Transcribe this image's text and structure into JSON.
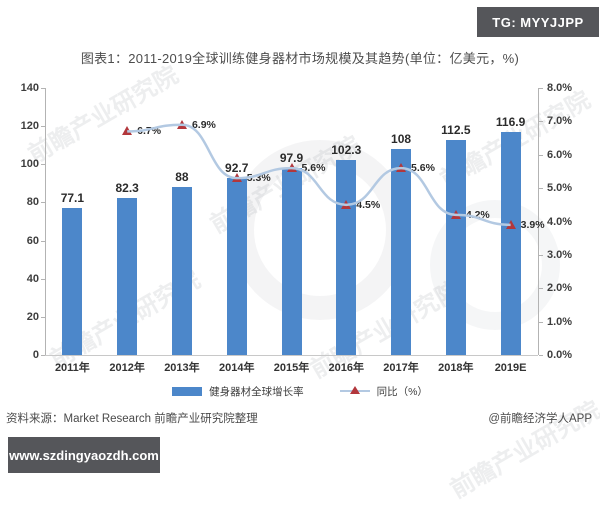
{
  "badges": {
    "tg": "TG: MYYJJPP",
    "url": "www.szdingyaozdh.com"
  },
  "title": "图表1：2011-2019全球训练健身器材市场规模及其趋势(单位：亿美元，%)",
  "watermark": {
    "diagonal_text": "前瞻产业研究院"
  },
  "footer": {
    "source": "资料来源：Market Research 前瞻产业研究院整理",
    "credit": "@前瞻经济学人APP"
  },
  "colors": {
    "bar": "#4c87ca",
    "line": "#b3c9e2",
    "marker": "#b2373c",
    "badge_bg": "#55565a",
    "axis": "#b3b3b3"
  },
  "chart_data": {
    "type": "bar",
    "subtype": "bar+line combo",
    "title": "2011-2019全球训练健身器材市场规模及其趋势",
    "unit": "亿美元，%",
    "categories": [
      "2011年",
      "2012年",
      "2013年",
      "2014年",
      "2015年",
      "2016年",
      "2017年",
      "2018年",
      "2019E"
    ],
    "series": [
      {
        "name": "健身器材全球增长率",
        "type": "bar",
        "axis": "left",
        "values": [
          77.1,
          82.3,
          88,
          92.7,
          97.9,
          102.3,
          108,
          112.5,
          116.9
        ],
        "labels": [
          "77.1",
          "82.3",
          "88",
          "92.7",
          "97.9",
          "102.3",
          "108",
          "112.5",
          "116.9"
        ]
      },
      {
        "name": "同比（%）",
        "type": "line",
        "axis": "right",
        "values": [
          null,
          6.7,
          6.9,
          5.3,
          5.6,
          4.5,
          5.6,
          4.2,
          3.9
        ],
        "labels": [
          null,
          "6.7%",
          "6.9%",
          "5.3%",
          "5.6%",
          "4.5%",
          "5.6%",
          "4.2%",
          "3.9%"
        ]
      }
    ],
    "left_axis": {
      "range": [
        0,
        140
      ],
      "ticks": [
        "0",
        "20",
        "40",
        "60",
        "80",
        "100",
        "120",
        "140"
      ]
    },
    "right_axis": {
      "range": [
        0,
        8
      ],
      "ticks": [
        "0.0%",
        "1.0%",
        "2.0%",
        "3.0%",
        "4.0%",
        "5.0%",
        "6.0%",
        "7.0%",
        "8.0%"
      ]
    },
    "grid": false,
    "legend_position": "bottom"
  }
}
